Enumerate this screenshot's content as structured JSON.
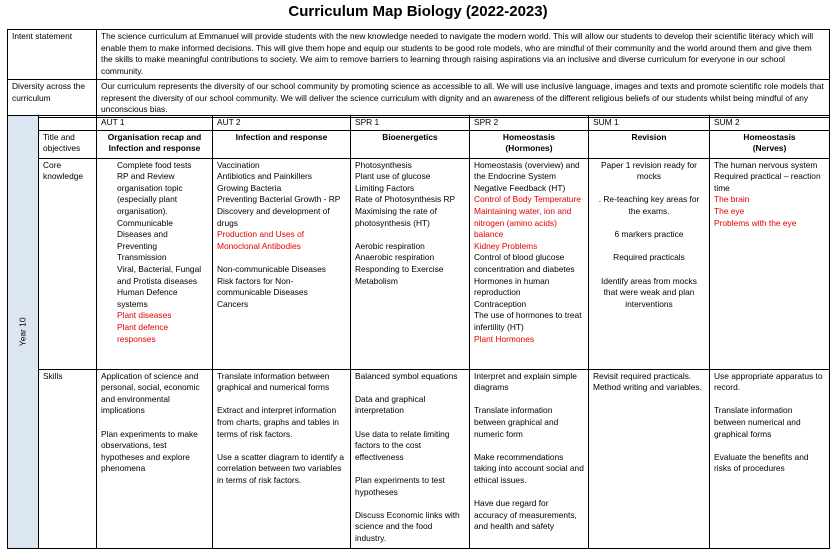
{
  "title": "Curriculum Map Biology (2022-2023)",
  "statements": [
    {
      "label": "Intent statement",
      "text": "The science curriculum at Emmanuel will provide students with the new knowledge needed to navigate the modern world. This will allow our students to develop their scientific literacy which will enable them to make informed decisions. This will give them hope and equip our students to be good role models, who are mindful of their community and the world around them and give them the skills to make meaningful contributions to society. We aim to remove barriers to learning through raising aspirations via an inclusive and diverse curriculum for everyone in our school community."
    },
    {
      "label": "Diversity across the curriculum",
      "text": "Our curriculum represents the diversity of our school community by promoting science as accessible to all. We will use inclusive language, images and texts and promote scientific role models that represent the diversity of our school community. We will deliver the science curriculum with dignity and an awareness of the different religious beliefs of our students whilst being mindful of any unconscious bias."
    }
  ],
  "grid": {
    "year": "Year 10",
    "terms": [
      "AUT 1",
      "AUT 2",
      "SPR 1",
      "SPR 2",
      "SUM 1",
      "SUM 2"
    ],
    "rows": [
      {
        "label": "Title and objectives",
        "cells": [
          [
            [
              "Organisation recap and Infection and response"
            ]
          ],
          [
            [
              "Infection and response"
            ]
          ],
          [
            [
              "Bioenergetics"
            ]
          ],
          [
            [
              "Homeostasis",
              "(Hormones)"
            ]
          ],
          [
            [
              "Revision"
            ]
          ],
          [
            [
              "Homeostasis",
              "(Nerves)"
            ]
          ]
        ]
      },
      {
        "label": "Core knowledge",
        "cells": [
          [
            [
              "Complete food tests",
              "RP and Review organisation topic (especially plant organisation).",
              "Communicable Diseases and Preventing Transmission",
              "Viral, Bacterial, Fungal and Protista diseases",
              "Human Defence systems",
              {
                "text": "Plant diseases",
                "color": "#e00000"
              },
              {
                "text": "Plant defence responses",
                "color": "#e00000"
              }
            ]
          ],
          [
            [
              "Vaccination",
              "Antibiotics and Painkillers",
              "Growing Bacteria",
              " Preventing Bacterial Growth - RP",
              "Discovery and development of drugs",
              {
                "text": "Production and Uses of Monoclonal Antibodies",
                "color": "#e00000"
              }
            ],
            [
              "Non-communicable Diseases",
              "Risk factors for Non-communicable Diseases",
              "Cancers"
            ]
          ],
          [
            [
              "Photosynthesis",
              "Plant use of glucose",
              "Limiting Factors",
              "Rate of Photosynthesis RP",
              "Maximising the rate of photosynthesis (HT)"
            ],
            [
              "Aerobic respiration",
              "Anaerobic respiration",
              "Responding to Exercise",
              "Metabolism"
            ]
          ],
          [
            [
              "Homeostasis (overview) and the Endocrine System",
              "Negative Feedback (HT)",
              {
                "text": "Control of Body Temperature",
                "color": "#e00000"
              },
              {
                "text": "Maintaining water, ion and nitrogen (amino acids) balance",
                "color": "#e00000"
              },
              {
                "text": "Kidney Problems",
                "color": "#e00000"
              },
              "Control of blood glucose concentration  and diabetes",
              "Hormones in human reproduction",
              "Contraception",
              "The use of hormones to treat infertility (HT)",
              {
                "text": "Plant Hormones",
                "color": "#e00000"
              }
            ]
          ],
          [
            [
              "Paper 1 revision ready for mocks"
            ],
            [
              ". Re-teaching key areas for the exams."
            ],
            [
              "6 markers practice"
            ],
            [
              "Required practicals"
            ],
            [
              "Identify areas from mocks that were weak and plan interventions"
            ]
          ],
          [
            [
              "The human nervous system",
              "Required practical – reaction time",
              {
                "text": "The brain",
                "color": "#e00000"
              },
              {
                "text": "The eye",
                "color": "#e00000"
              },
              {
                "text": "Problems with the eye",
                "color": "#e00000"
              }
            ]
          ]
        ]
      },
      {
        "label": "Skills",
        "cells": [
          [
            [
              "Application of science and personal, social, economic and environmental implications"
            ],
            [
              "Plan experiments to make observations, test hypotheses and explore phenomena"
            ]
          ],
          [
            [
              "Translate information between graphical and numerical forms"
            ],
            [
              "Extract and interpret information from charts, graphs and tables in terms of risk factors."
            ],
            [
              "Use a scatter diagram to identify a correlation between two variables in terms of risk factors."
            ]
          ],
          [
            [
              "Balanced symbol equations"
            ],
            [
              "Data and graphical interpretation"
            ],
            [
              "Use data to relate limiting factors to the cost effectiveness"
            ],
            [
              "Plan experiments to test hypotheses"
            ],
            [
              "Discuss Economic links with science and the food industry."
            ]
          ],
          [
            [
              "Interpret and explain simple diagrams"
            ],
            [
              "Translate information between graphical and numeric form"
            ],
            [
              "Make recommendations taking into account social and ethical issues."
            ],
            [
              "Have due regard for accuracy of measurements, and health and safety"
            ]
          ],
          [
            [
              "Revisit required practicals. Method writing and variables."
            ]
          ],
          [
            [
              "Use appropriate apparatus to record."
            ],
            [
              "Translate information between numerical and graphical forms"
            ],
            [
              "Evaluate the benefits and risks of procedures"
            ]
          ]
        ]
      }
    ]
  }
}
